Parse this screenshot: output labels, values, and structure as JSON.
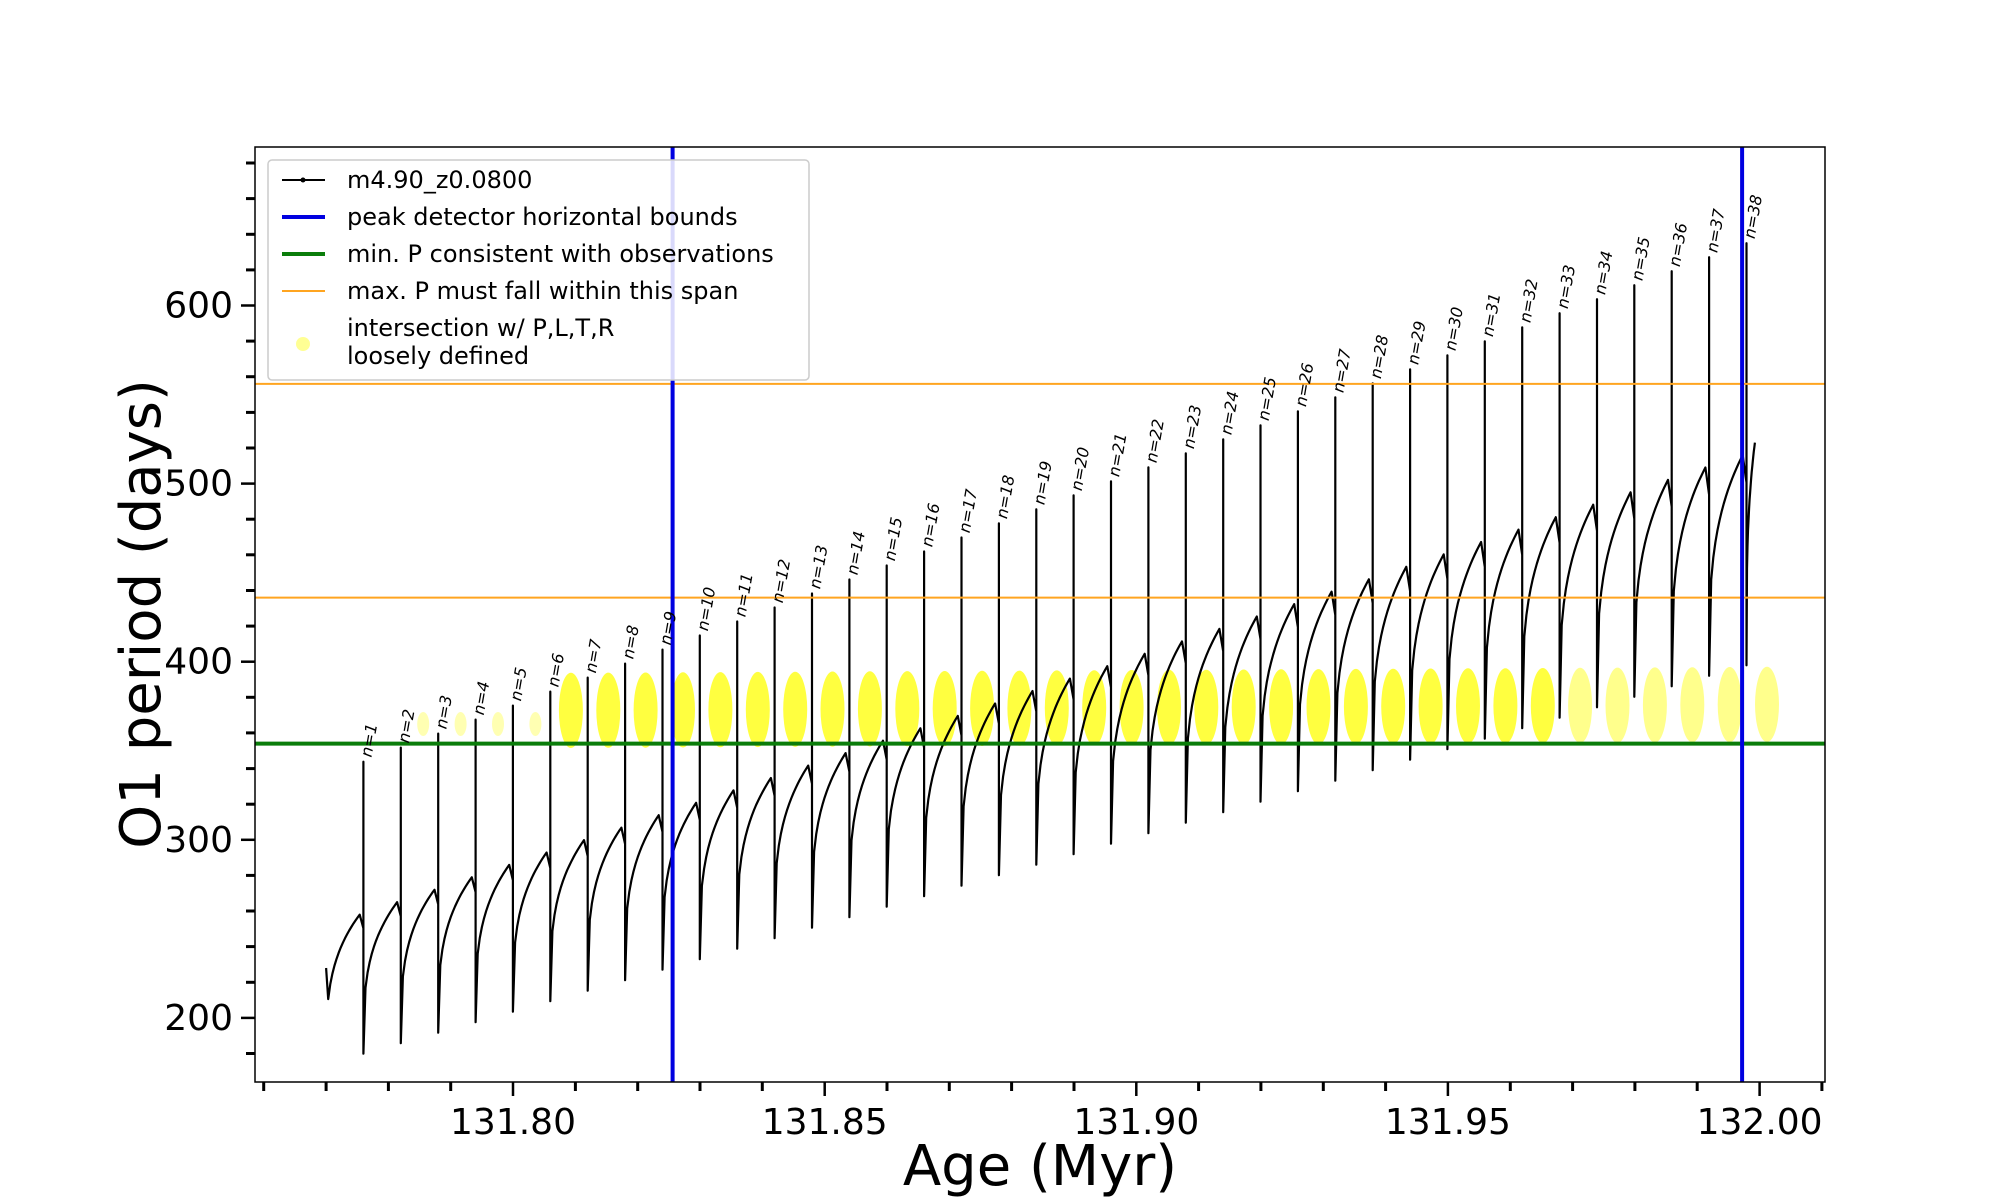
{
  "chart_data": {
    "type": "line",
    "title": "",
    "xlabel": "Age (Myr)",
    "ylabel": "O1 period (days)",
    "xlim": [
      131.7586,
      132.0105
    ],
    "ylim": [
      164,
      689
    ],
    "xticks": [
      131.8,
      131.85,
      131.9,
      131.95,
      132.0
    ],
    "xtick_labels": [
      "131.80",
      "131.85",
      "131.90",
      "131.95",
      "132.00"
    ],
    "yticks": [
      200,
      300,
      400,
      500,
      600
    ],
    "ytick_labels": [
      "200",
      "300",
      "400",
      "500",
      "600"
    ],
    "legend_position": "upper-left",
    "legend": [
      {
        "label": "m4.90_z0.0800",
        "color": "#000000",
        "style": "line-marker"
      },
      {
        "label": "peak detector horizontal bounds",
        "color": "#0000e0",
        "style": "thick-line"
      },
      {
        "label": "min. P consistent with observations",
        "color": "#0a7d0a",
        "style": "thick-line"
      },
      {
        "label": "max. P must fall within this span",
        "color": "#ffa520",
        "style": "thin-line"
      },
      {
        "label": "intersection w/ P,L,T,R",
        "label2": "loosely defined",
        "color": "#ffff66",
        "style": "dot"
      }
    ],
    "vertical_lines": [
      131.8256,
      131.9972
    ],
    "min_period_line": 354,
    "max_period_span": [
      436,
      556
    ],
    "series": {
      "name": "m4.90_z0.0800",
      "age_start": 131.77,
      "age_end": 131.9994,
      "pulse_count": 38,
      "base_period_start": 258,
      "base_period_end": 523,
      "min_period_start": 174,
      "min_period_end": 398,
      "spike_start": 336,
      "spike_end": 635
    },
    "pulse_labels": [
      "n=1",
      "n=2",
      "n=3",
      "n=4",
      "n=5",
      "n=6",
      "n=7",
      "n=8",
      "n=9",
      "n=10",
      "n=11",
      "n=12",
      "n=13",
      "n=14",
      "n=15",
      "n=16",
      "n=17",
      "n=18",
      "n=19",
      "n=20",
      "n=21",
      "n=22",
      "n=23",
      "n=24",
      "n=25",
      "n=26",
      "n=27",
      "n=28",
      "n=29",
      "n=30",
      "n=31",
      "n=32",
      "n=33",
      "n=34",
      "n=35",
      "n=36",
      "n=37",
      "n=38"
    ],
    "intersection_band": [
      352,
      392
    ]
  }
}
